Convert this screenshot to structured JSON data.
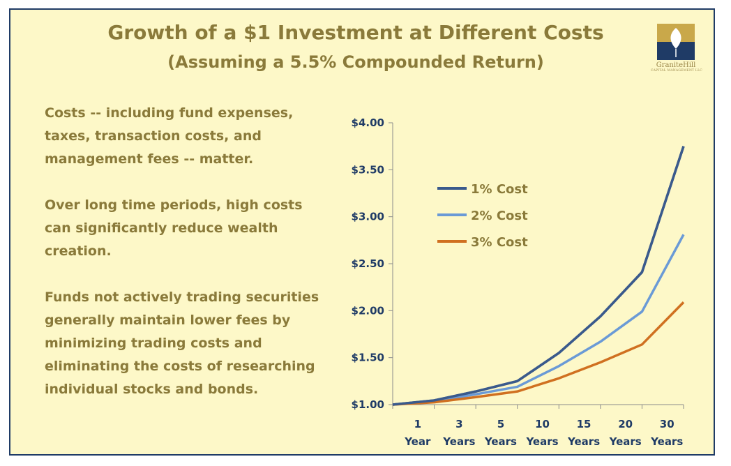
{
  "title": "Growth of a $1 Investment at Different Costs",
  "subtitle": "(Assuming a 5.5% Compounded Return)",
  "logo": {
    "name": "GraniteHill",
    "sub": "CAPITAL MANAGEMENT LLC"
  },
  "paragraphs": [
    "Costs -- including fund expenses, taxes, transaction costs, and management fees -- matter.",
    "Over long time periods, high costs can significantly reduce wealth creation.",
    "Funds not actively trading securities generally maintain lower fees by minimizing trading costs and eliminating the costs of researching individual stocks and bonds."
  ],
  "colors": {
    "background": "#fdf8c8",
    "border": "#1f3b66",
    "text": "#8a7a3a",
    "axis_text": "#1f3b66"
  },
  "chart_data": {
    "type": "line",
    "title": "",
    "xlabel": "",
    "ylabel": "",
    "categories": [
      "",
      "1 Year",
      "3 Years",
      "5 Years",
      "10 Years",
      "15 Years",
      "20 Years",
      "30 Years"
    ],
    "category_lines": [
      [
        "",
        ""
      ],
      [
        "1",
        "Year"
      ],
      [
        "3",
        "Years"
      ],
      [
        "5",
        "Years"
      ],
      [
        "10",
        "Years"
      ],
      [
        "15",
        "Years"
      ],
      [
        "20",
        "Years"
      ],
      [
        "30",
        "Years"
      ]
    ],
    "ylim": [
      1.0,
      4.0
    ],
    "yticks": [
      1.0,
      1.5,
      2.0,
      2.5,
      3.0,
      3.5,
      4.0
    ],
    "ytick_labels": [
      "$1.00",
      "$1.50",
      "$2.00",
      "$2.50",
      "$3.00",
      "$3.50",
      "$4.00"
    ],
    "grid": false,
    "legend_position": "upper-left inside",
    "series": [
      {
        "name": "1% Cost",
        "color": "#3a5a8c",
        "values": [
          1.0,
          1.045,
          1.14,
          1.25,
          1.55,
          1.94,
          2.41,
          3.75
        ]
      },
      {
        "name": "2% Cost",
        "color": "#6a9ad6",
        "values": [
          1.0,
          1.035,
          1.11,
          1.19,
          1.41,
          1.67,
          1.99,
          2.81
        ]
      },
      {
        "name": "3% Cost",
        "color": "#d07020",
        "values": [
          1.0,
          1.025,
          1.08,
          1.14,
          1.28,
          1.45,
          1.64,
          2.09
        ]
      }
    ]
  }
}
